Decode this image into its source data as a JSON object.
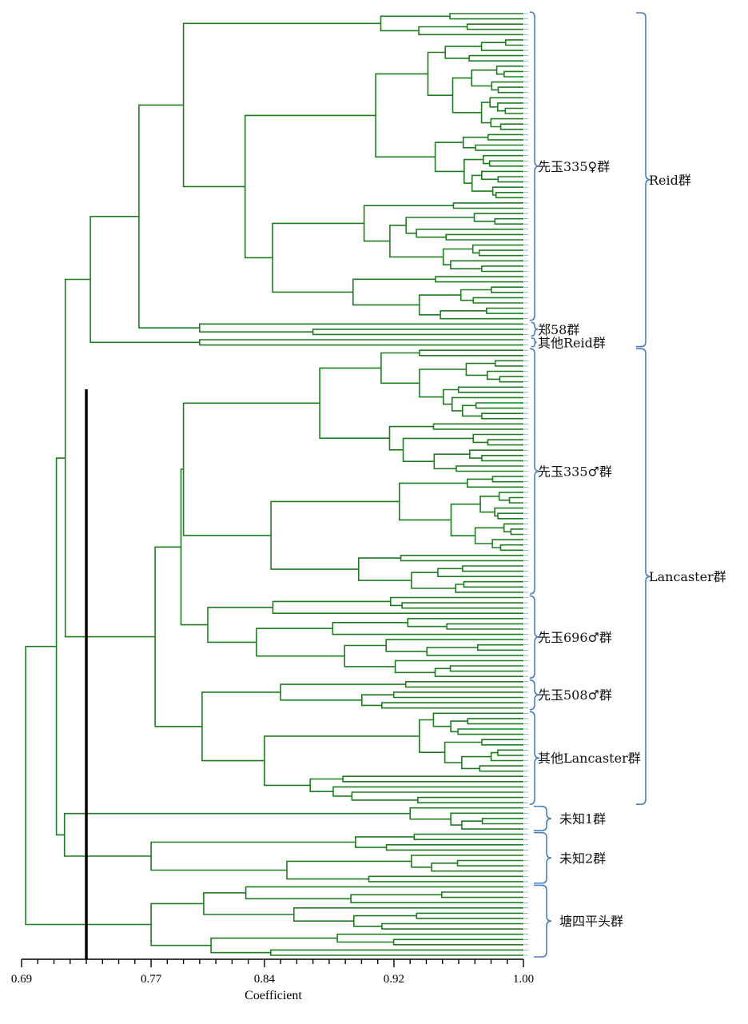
{
  "chart_data": {
    "type": "dendrogram",
    "title": "",
    "xlabel": "Coefficient",
    "ylabel": "",
    "xlim": [
      0.69,
      1.0
    ],
    "x_ticks": [
      "0.69",
      "0.77",
      "0.84",
      "0.92",
      "1.00"
    ],
    "threshold": 0.73,
    "leaf_count": 180,
    "subgroups": [
      {
        "name": "先玉335♀群",
        "leaves": [
          0,
          58
        ]
      },
      {
        "name": "郑58群",
        "leaves": [
          59,
          61
        ]
      },
      {
        "name": "其他Reid群",
        "leaves": [
          62,
          63
        ]
      },
      {
        "name": "先玉335♂群",
        "leaves": [
          64,
          110
        ]
      },
      {
        "name": "先玉696♂群",
        "leaves": [
          111,
          126
        ]
      },
      {
        "name": "先玉508♂群",
        "leaves": [
          127,
          132
        ]
      },
      {
        "name": "其他Lancaster群",
        "leaves": [
          133,
          150
        ]
      },
      {
        "name": "未知1群",
        "leaves": [
          151,
          155
        ]
      },
      {
        "name": "未知2群",
        "leaves": [
          156,
          165
        ]
      },
      {
        "name": "塘四平头群",
        "leaves": [
          166,
          179
        ]
      }
    ],
    "major_groups": [
      {
        "name": "Reid群",
        "leaves": [
          0,
          63
        ]
      },
      {
        "name": "Lancaster群",
        "leaves": [
          64,
          150
        ]
      }
    ]
  }
}
